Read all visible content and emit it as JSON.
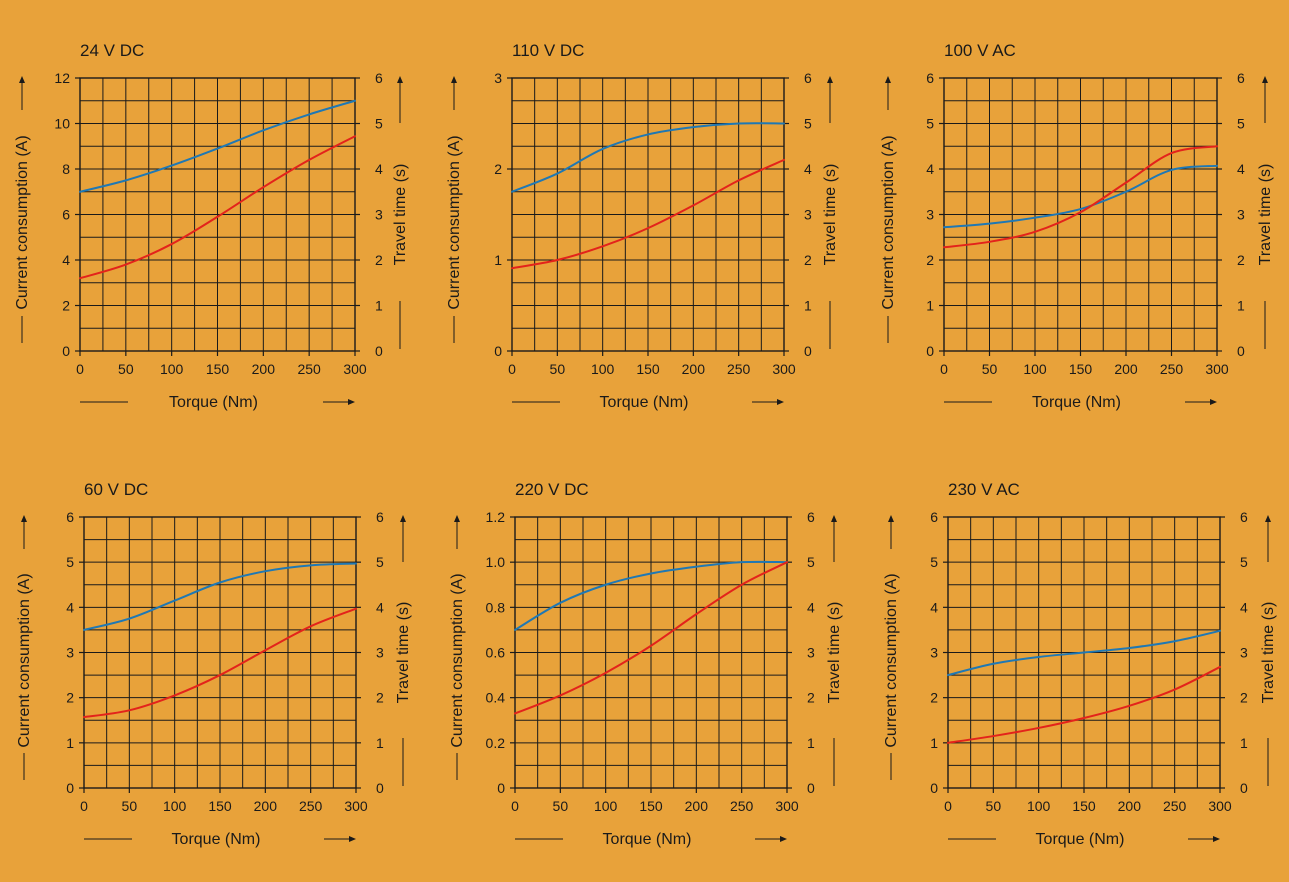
{
  "colors": {
    "background": "#e8a23a",
    "grid": "#1a1a1a",
    "current": "#1f78b4",
    "travel": "#e3231b"
  },
  "chart_data": [
    {
      "type": "line",
      "title": "24 V DC",
      "xlabel": "Torque (Nm)",
      "ylabel": "Current consumption (A)",
      "y2label": "Travel time (s)",
      "xlim": [
        0,
        300
      ],
      "xticks": [
        0,
        50,
        100,
        150,
        200,
        250,
        300
      ],
      "ylim": [
        0,
        12
      ],
      "yticks": [
        0,
        2,
        4,
        6,
        8,
        10,
        12
      ],
      "y2lim": [
        0,
        6
      ],
      "y2ticks": [
        0,
        1,
        2,
        3,
        4,
        5,
        6
      ],
      "grid": true,
      "x": [
        0,
        50,
        100,
        150,
        200,
        250,
        300
      ],
      "series": [
        {
          "axis": "left",
          "color": "current",
          "values": [
            7.0,
            7.5,
            8.15,
            8.9,
            9.7,
            10.4,
            11.0
          ]
        },
        {
          "axis": "right",
          "color": "travel",
          "values": [
            1.6,
            1.9,
            2.35,
            2.95,
            3.6,
            4.2,
            4.72
          ]
        }
      ]
    },
    {
      "type": "line",
      "title": "110 V DC",
      "xlabel": "Torque (Nm)",
      "ylabel": "Current consumption (A)",
      "y2label": "Travel time (s)",
      "xlim": [
        0,
        300
      ],
      "xticks": [
        0,
        50,
        100,
        150,
        200,
        250,
        300
      ],
      "ylim": [
        0,
        3
      ],
      "yticks": [
        0,
        1,
        2,
        3
      ],
      "y2lim": [
        0,
        6
      ],
      "y2ticks": [
        0,
        1,
        2,
        3,
        4,
        5,
        6
      ],
      "grid": true,
      "x": [
        0,
        50,
        100,
        150,
        200,
        250,
        300
      ],
      "series": [
        {
          "axis": "left",
          "color": "current",
          "values": [
            1.75,
            1.95,
            2.22,
            2.38,
            2.46,
            2.5,
            2.5
          ]
        },
        {
          "axis": "right",
          "color": "travel",
          "values": [
            1.82,
            2.0,
            2.3,
            2.7,
            3.2,
            3.75,
            4.2
          ]
        }
      ]
    },
    {
      "type": "line",
      "title": "100 V AC",
      "xlabel": "Torque (Nm)",
      "ylabel": "Current consumption (A)",
      "y2label": "Travel time (s)",
      "xlim": [
        0,
        300
      ],
      "xticks": [
        0,
        50,
        100,
        150,
        200,
        250,
        300
      ],
      "ylim": [
        0,
        6
      ],
      "yticks": [
        0,
        1,
        2,
        3,
        4,
        5,
        6
      ],
      "y2lim": [
        0,
        6
      ],
      "y2ticks": [
        0,
        1,
        2,
        3,
        4,
        5,
        6
      ],
      "grid": true,
      "x": [
        0,
        50,
        100,
        150,
        200,
        250,
        300
      ],
      "series": [
        {
          "axis": "left",
          "color": "current",
          "values": [
            2.72,
            2.8,
            2.93,
            3.12,
            3.5,
            3.98,
            4.07
          ]
        },
        {
          "axis": "right",
          "color": "travel",
          "values": [
            2.28,
            2.4,
            2.62,
            3.05,
            3.7,
            4.35,
            4.5
          ]
        }
      ]
    },
    {
      "type": "line",
      "title": "60 V DC",
      "xlabel": "Torque (Nm)",
      "ylabel": "Current consumption (A)",
      "y2label": "Travel time (s)",
      "xlim": [
        0,
        300
      ],
      "xticks": [
        0,
        50,
        100,
        150,
        200,
        250,
        300
      ],
      "ylim": [
        0,
        6
      ],
      "yticks": [
        0,
        1,
        2,
        3,
        4,
        5,
        6
      ],
      "y2lim": [
        0,
        6
      ],
      "y2ticks": [
        0,
        1,
        2,
        3,
        4,
        5,
        6
      ],
      "grid": true,
      "x": [
        0,
        50,
        100,
        150,
        200,
        250,
        300
      ],
      "series": [
        {
          "axis": "left",
          "color": "current",
          "values": [
            3.5,
            3.75,
            4.15,
            4.55,
            4.8,
            4.93,
            4.97
          ]
        },
        {
          "axis": "right",
          "color": "travel",
          "values": [
            1.57,
            1.72,
            2.05,
            2.5,
            3.05,
            3.58,
            3.97
          ]
        }
      ]
    },
    {
      "type": "line",
      "title": "220 V DC",
      "xlabel": "Torque (Nm)",
      "ylabel": "Current consumption (A)",
      "y2label": "Travel time (s)",
      "xlim": [
        0,
        300
      ],
      "xticks": [
        0,
        50,
        100,
        150,
        200,
        250,
        300
      ],
      "ylim": [
        0,
        1.2
      ],
      "yticks": [
        "0",
        "0.2",
        "0.4",
        "0.6",
        "0.8",
        "1.0",
        "1.2"
      ],
      "y2lim": [
        0,
        6
      ],
      "y2ticks": [
        0,
        1,
        2,
        3,
        4,
        5,
        6
      ],
      "grid": true,
      "x": [
        0,
        50,
        100,
        150,
        200,
        250,
        300
      ],
      "series": [
        {
          "axis": "left",
          "color": "current",
          "values": [
            0.7,
            0.82,
            0.9,
            0.95,
            0.98,
            1.0,
            1.0
          ]
        },
        {
          "axis": "right",
          "color": "travel",
          "values": [
            1.65,
            2.05,
            2.55,
            3.15,
            3.85,
            4.5,
            5.0
          ]
        }
      ]
    },
    {
      "type": "line",
      "title": "230 V AC",
      "xlabel": "Torque (Nm)",
      "ylabel": "Current consumption (A)",
      "y2label": "Travel time (s)",
      "xlim": [
        0,
        300
      ],
      "xticks": [
        0,
        50,
        100,
        150,
        200,
        250,
        300
      ],
      "ylim": [
        0,
        6
      ],
      "yticks": [
        0,
        1,
        2,
        3,
        4,
        5,
        6
      ],
      "y2lim": [
        0,
        6
      ],
      "y2ticks": [
        0,
        1,
        2,
        3,
        4,
        5,
        6
      ],
      "grid": true,
      "x": [
        0,
        50,
        100,
        150,
        200,
        250,
        300
      ],
      "series": [
        {
          "axis": "left",
          "color": "current",
          "values": [
            2.5,
            2.75,
            2.9,
            3.0,
            3.1,
            3.25,
            3.48
          ]
        },
        {
          "axis": "right",
          "color": "travel",
          "values": [
            1.0,
            1.15,
            1.33,
            1.55,
            1.82,
            2.18,
            2.68
          ]
        }
      ]
    }
  ]
}
